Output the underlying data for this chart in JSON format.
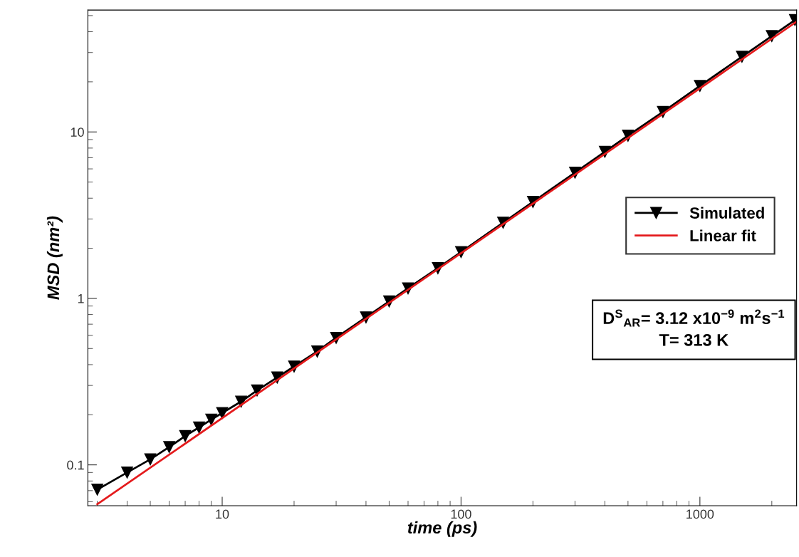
{
  "chart_data": {
    "type": "line",
    "xlabel": "time (ps)",
    "ylabel": "MSD (nm²)",
    "log": "xy",
    "xlim": [
      2.74,
      2540
    ],
    "ylim": [
      0.0568,
      54
    ],
    "xticks": [
      10,
      100,
      1000
    ],
    "yticks": [
      0.1,
      1,
      10
    ],
    "grid": false,
    "legend": "right",
    "series": [
      {
        "name": "Simulated",
        "color": "#000000",
        "marker": "triangle",
        "line_style": "solid",
        "x": [
          3,
          4,
          5,
          6,
          7,
          8,
          9,
          10,
          12,
          14,
          17,
          20,
          25,
          30,
          40,
          50,
          60,
          80,
          100,
          150,
          200,
          300,
          400,
          500,
          700,
          1000,
          1500,
          2000,
          2500
        ],
        "values": [
          0.071,
          0.09,
          0.108,
          0.128,
          0.149,
          0.168,
          0.187,
          0.205,
          0.24,
          0.28,
          0.335,
          0.39,
          0.48,
          0.58,
          0.77,
          0.96,
          1.15,
          1.52,
          1.9,
          2.85,
          3.8,
          5.7,
          7.6,
          9.5,
          13.2,
          18.9,
          28.3,
          37.7,
          47
        ]
      },
      {
        "name": "Linear fit",
        "color": "#e41a1c",
        "marker": "none",
        "line_style": "solid",
        "x": [
          3,
          2540
        ],
        "values": [
          0.058,
          46
        ]
      }
    ],
    "annotations": [
      "D$^{S}$$_{AR}$= 3.12 x10$^{−9}$ m$^{2}$s$^{−1}$\nT= 313 K"
    ]
  }
}
